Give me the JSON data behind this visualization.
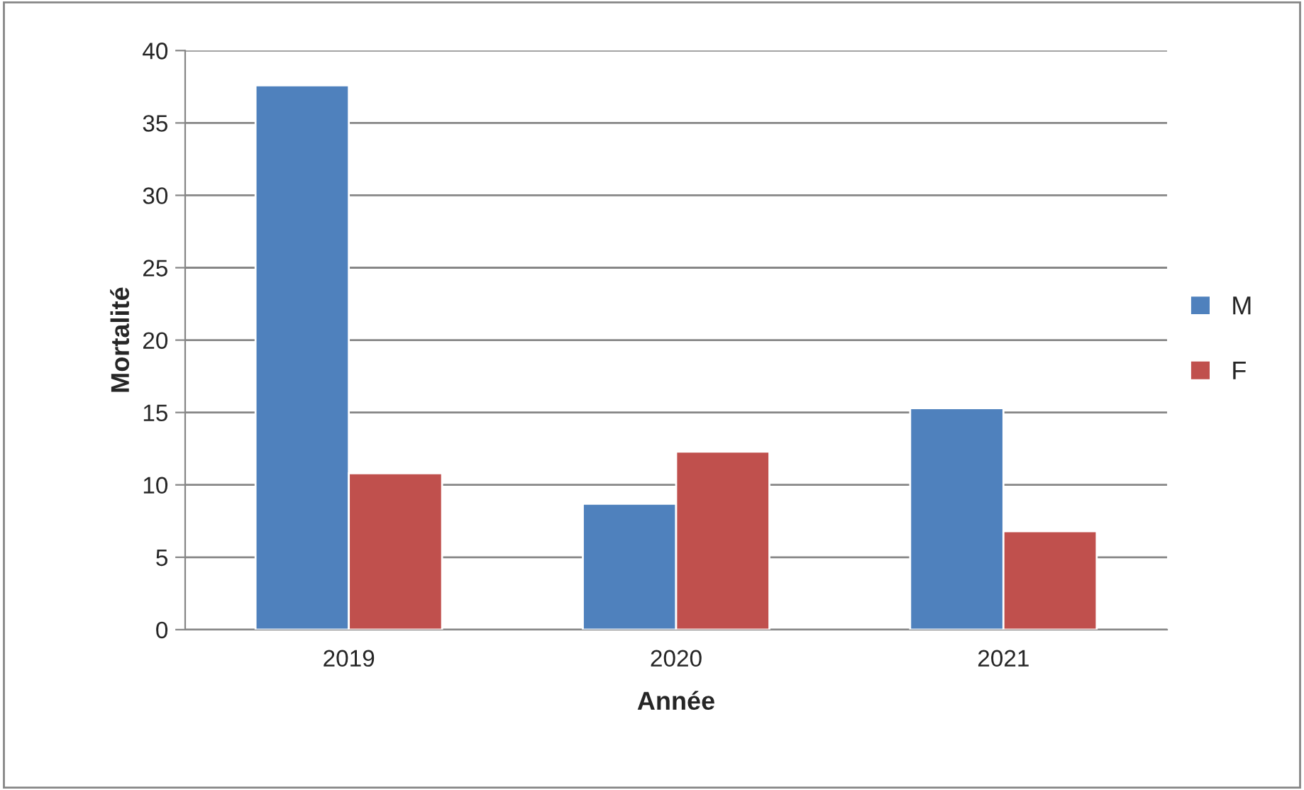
{
  "chart_data": {
    "type": "bar",
    "xlabel": "Année",
    "ylabel": "Mortalité",
    "categories": [
      "2019",
      "2020",
      "2021"
    ],
    "series": [
      {
        "name": "M",
        "color": "#4f81bd",
        "values": [
          37.6,
          8.7,
          15.3
        ]
      },
      {
        "name": "F",
        "color": "#c0504d",
        "values": [
          10.8,
          12.3,
          6.8
        ]
      }
    ],
    "ylim": [
      0,
      40
    ],
    "yticks": [
      0,
      5,
      10,
      15,
      20,
      25,
      30,
      35,
      40
    ],
    "grid": "y",
    "legend": "right"
  }
}
